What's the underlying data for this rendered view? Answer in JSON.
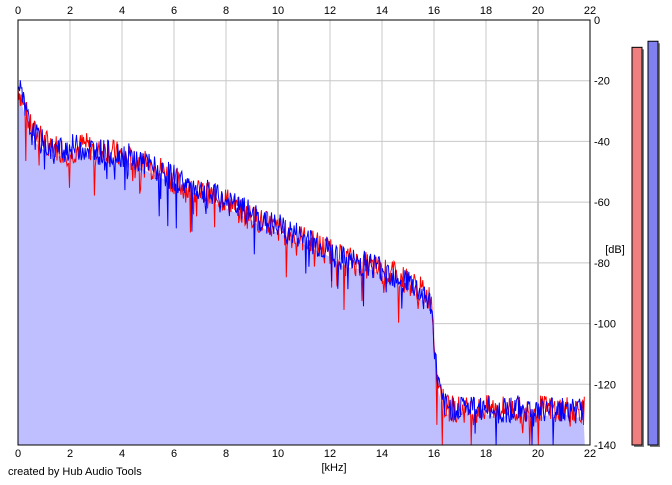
{
  "chart_data": {
    "type": "area",
    "xlabel": "[kHz]",
    "ylabel": "[dB]",
    "xlim": [
      0,
      22
    ],
    "ylim": [
      -140,
      0
    ],
    "x_ticks": [
      0,
      2,
      4,
      6,
      8,
      10,
      12,
      14,
      16,
      18,
      20,
      22
    ],
    "y_ticks": [
      0,
      -20,
      -40,
      -60,
      -80,
      -100,
      -120,
      -140
    ],
    "grid": true,
    "x": [
      0,
      0.5,
      1,
      1.5,
      2,
      2.5,
      3,
      3.5,
      4,
      4.5,
      5,
      5.5,
      6,
      6.5,
      7,
      7.5,
      8,
      8.5,
      9,
      9.5,
      10,
      10.5,
      11,
      11.5,
      12,
      12.5,
      13,
      13.5,
      14,
      14.5,
      15,
      15.5,
      15.9,
      16,
      16.1,
      16.3,
      16.5,
      17,
      17.5,
      18,
      18.5,
      19,
      19.5,
      20,
      20.5,
      21,
      21.5,
      22
    ],
    "series": [
      {
        "color": "#ff0000",
        "values": [
          -22,
          -36,
          -40,
          -42,
          -44,
          -41,
          -43,
          -43,
          -45,
          -46,
          -48,
          -49,
          -53,
          -56,
          -57,
          -58,
          -59,
          -63,
          -65,
          -67,
          -69,
          -71,
          -72,
          -74,
          -76,
          -78,
          -80,
          -81,
          -83,
          -84,
          -86,
          -89,
          -92,
          -104,
          -115,
          -125,
          -128,
          -128,
          -129,
          -128,
          -128,
          -128,
          -129,
          -128,
          -128,
          -128,
          -128,
          -129
        ]
      },
      {
        "color": "#0000ff",
        "values": [
          -21,
          -37,
          -41,
          -43,
          -42,
          -42,
          -43,
          -44,
          -44,
          -46,
          -48,
          -50,
          -52,
          -54,
          -56,
          -58,
          -60,
          -62,
          -64,
          -67,
          -68,
          -70,
          -72,
          -74,
          -76,
          -79,
          -80,
          -80,
          -82,
          -84,
          -86,
          -90,
          -94,
          -106,
          -116,
          -126,
          -128,
          -127,
          -128,
          -128,
          -129,
          -128,
          -128,
          -129,
          -128,
          -128,
          -129,
          -128
        ]
      }
    ],
    "level_meters": [
      {
        "color": "#f08080",
        "value_db": -9
      },
      {
        "color": "#8080f0",
        "value_db": -7
      }
    ]
  },
  "footer": {
    "credit": "created by Hub Audio Tools"
  }
}
